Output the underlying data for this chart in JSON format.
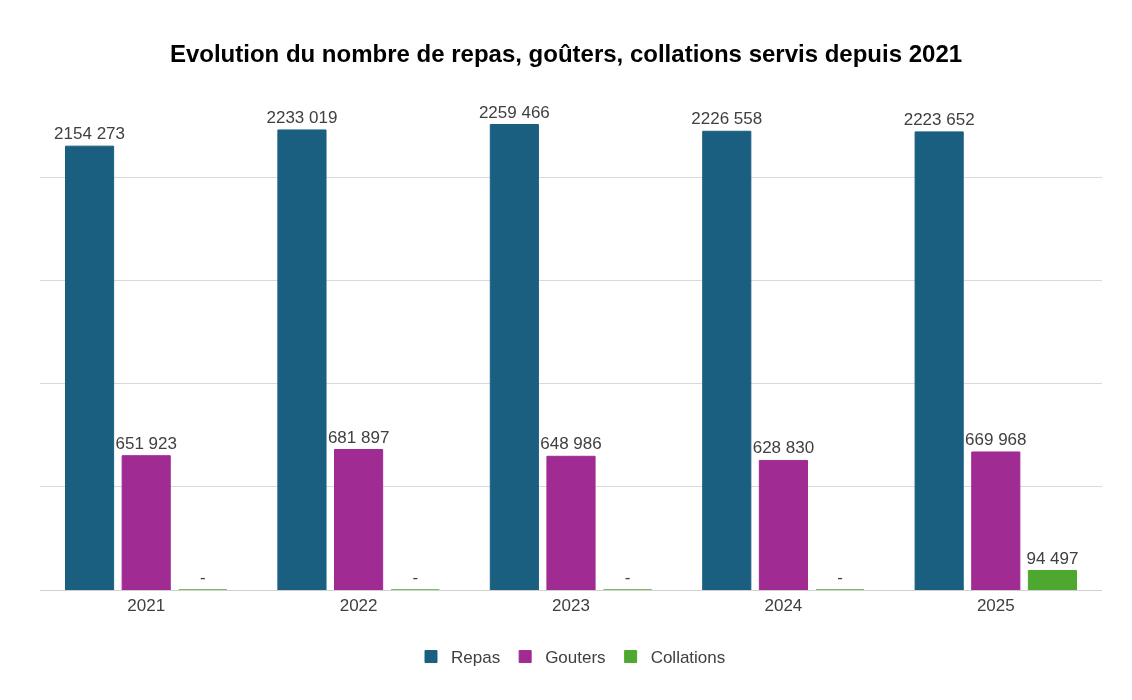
{
  "chart_data": {
    "type": "bar",
    "title": "Evolution du nombre de repas, goûters, collations servis depuis 2021",
    "categories": [
      "2021",
      "2022",
      "2023",
      "2024",
      "2025"
    ],
    "series": [
      {
        "name": "Repas",
        "color": "#1a5f80",
        "values": [
          2154273,
          2233019,
          2259466,
          2226558,
          2223652
        ],
        "value_labels": [
          "2154 273",
          "2233 019",
          "2259 466",
          "2226 558",
          "2223 652"
        ]
      },
      {
        "name": "Gouters",
        "color": "#a02b93",
        "values": [
          651923,
          681897,
          648986,
          628830,
          669968
        ],
        "value_labels": [
          "651 923",
          "681 897",
          "648 986",
          "628 830",
          "669 968"
        ]
      },
      {
        "name": "Collations",
        "color": "#4ea72e",
        "values": [
          0,
          0,
          0,
          0,
          94497
        ],
        "value_labels": [
          "-",
          "-",
          "-",
          "-",
          "94 497"
        ]
      }
    ],
    "tick_labels": "x",
    "grid": "y",
    "legend": "bottom"
  }
}
